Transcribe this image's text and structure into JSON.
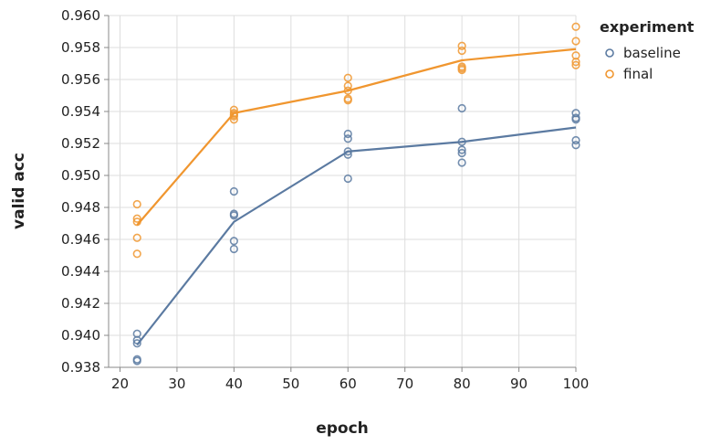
{
  "chart_data": {
    "type": "line",
    "xlabel": "epoch",
    "ylabel": "valid acc",
    "xlim": [
      18,
      100
    ],
    "ylim": [
      0.938,
      0.96
    ],
    "x_ticks": [
      20,
      30,
      40,
      50,
      60,
      70,
      80,
      90,
      100
    ],
    "x_tick_labels": [
      "20",
      "30",
      "40",
      "50",
      "60",
      "70",
      "80",
      "90",
      "100"
    ],
    "y_ticks": [
      0.938,
      0.94,
      0.942,
      0.944,
      0.946,
      0.948,
      0.95,
      0.952,
      0.954,
      0.956,
      0.958,
      0.96
    ],
    "y_tick_labels": [
      "0.938",
      "0.940",
      "0.942",
      "0.944",
      "0.946",
      "0.948",
      "0.950",
      "0.952",
      "0.954",
      "0.956",
      "0.958",
      "0.960"
    ],
    "grid": true,
    "legend": {
      "title": "experiment",
      "position": "right"
    },
    "series": [
      {
        "name": "baseline",
        "color": "#5b7aa1",
        "line": {
          "x": [
            23,
            40,
            60,
            80,
            100
          ],
          "y": [
            0.9394,
            0.9471,
            0.9515,
            0.9521,
            0.953
          ]
        },
        "points": [
          {
            "x": 23,
            "y": 0.9401
          },
          {
            "x": 23,
            "y": 0.9397
          },
          {
            "x": 23,
            "y": 0.9395
          },
          {
            "x": 23,
            "y": 0.9385
          },
          {
            "x": 23,
            "y": 0.9384
          },
          {
            "x": 40,
            "y": 0.949
          },
          {
            "x": 40,
            "y": 0.9476
          },
          {
            "x": 40,
            "y": 0.9475
          },
          {
            "x": 40,
            "y": 0.9459
          },
          {
            "x": 40,
            "y": 0.9454
          },
          {
            "x": 60,
            "y": 0.9526
          },
          {
            "x": 60,
            "y": 0.9523
          },
          {
            "x": 60,
            "y": 0.9515
          },
          {
            "x": 60,
            "y": 0.9513
          },
          {
            "x": 60,
            "y": 0.9498
          },
          {
            "x": 80,
            "y": 0.9542
          },
          {
            "x": 80,
            "y": 0.9521
          },
          {
            "x": 80,
            "y": 0.9516
          },
          {
            "x": 80,
            "y": 0.9514
          },
          {
            "x": 80,
            "y": 0.9508
          },
          {
            "x": 100,
            "y": 0.9539
          },
          {
            "x": 100,
            "y": 0.9536
          },
          {
            "x": 100,
            "y": 0.9535
          },
          {
            "x": 100,
            "y": 0.9522
          },
          {
            "x": 100,
            "y": 0.9519
          }
        ]
      },
      {
        "name": "final",
        "color": "#f0962f",
        "line": {
          "x": [
            23,
            40,
            60,
            80,
            100
          ],
          "y": [
            0.9469,
            0.9539,
            0.9553,
            0.9572,
            0.9579
          ]
        },
        "points": [
          {
            "x": 23,
            "y": 0.9482
          },
          {
            "x": 23,
            "y": 0.9473
          },
          {
            "x": 23,
            "y": 0.9471
          },
          {
            "x": 23,
            "y": 0.9461
          },
          {
            "x": 23,
            "y": 0.9451
          },
          {
            "x": 40,
            "y": 0.9541
          },
          {
            "x": 40,
            "y": 0.9539
          },
          {
            "x": 40,
            "y": 0.9538
          },
          {
            "x": 40,
            "y": 0.9537
          },
          {
            "x": 40,
            "y": 0.9535
          },
          {
            "x": 60,
            "y": 0.9561
          },
          {
            "x": 60,
            "y": 0.9556
          },
          {
            "x": 60,
            "y": 0.9553
          },
          {
            "x": 60,
            "y": 0.9548
          },
          {
            "x": 60,
            "y": 0.9547
          },
          {
            "x": 80,
            "y": 0.9581
          },
          {
            "x": 80,
            "y": 0.9578
          },
          {
            "x": 80,
            "y": 0.9568
          },
          {
            "x": 80,
            "y": 0.9567
          },
          {
            "x": 80,
            "y": 0.9566
          },
          {
            "x": 100,
            "y": 0.9593
          },
          {
            "x": 100,
            "y": 0.9584
          },
          {
            "x": 100,
            "y": 0.9575
          },
          {
            "x": 100,
            "y": 0.9571
          },
          {
            "x": 100,
            "y": 0.9569
          }
        ]
      }
    ]
  }
}
